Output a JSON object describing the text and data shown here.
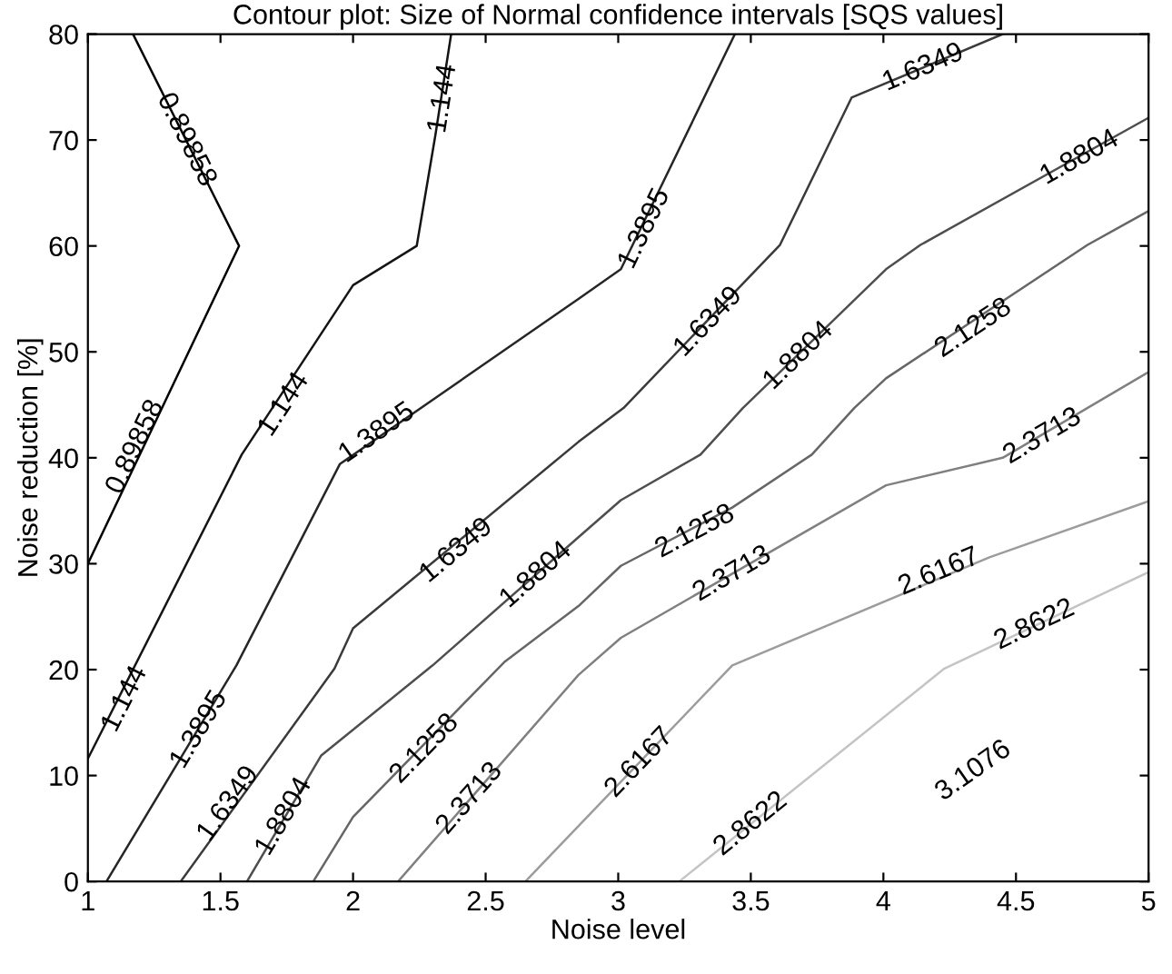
{
  "chart_data": {
    "type": "line",
    "title": "Contour plot: Size of Normal confidence intervals [SQS values]",
    "xlabel": "Noise level",
    "ylabel": "Noise reduction [%]",
    "xlim": [
      1,
      5
    ],
    "xticks": [
      1,
      1.5,
      2,
      2.5,
      3,
      3.5,
      4,
      4.5,
      5
    ],
    "ylim": [
      0,
      80
    ],
    "yticks": [
      0,
      10,
      20,
      30,
      40,
      50,
      60,
      70,
      80
    ],
    "grid": false,
    "marker": "none",
    "line_style": "solid",
    "series": [
      {
        "color": "#000000",
        "x": [
          1,
          1.57,
          1.17
        ],
        "values": [
          30,
          60,
          80
        ]
      },
      {
        "color": "#141414",
        "x": [
          1,
          1.58,
          2.0,
          2.24,
          2.31,
          2.37
        ],
        "values": [
          11.6,
          40.3,
          56.3,
          60,
          70.4,
          80
        ]
      },
      {
        "color": "#262626",
        "x": [
          1.07,
          1.56,
          1.95,
          2.85,
          3.01,
          3.44
        ],
        "values": [
          0,
          20.4,
          39.4,
          55,
          57.8,
          80
        ]
      },
      {
        "color": "#3a3a3a",
        "x": [
          1.35,
          1.93,
          2.0,
          2.85,
          3.02,
          3.61,
          3.88,
          4.45
        ],
        "values": [
          0,
          20.1,
          23.9,
          41.5,
          44.7,
          60.1,
          74,
          80
        ]
      },
      {
        "color": "#4e4e4e",
        "x": [
          1.6,
          1.88,
          2.3,
          2.85,
          3.01,
          3.31,
          3.47,
          4.01,
          4.14,
          5
        ],
        "values": [
          0,
          11.9,
          20.4,
          32.5,
          36,
          40.3,
          44.7,
          57.8,
          60.1,
          72.1
        ]
      },
      {
        "color": "#666666",
        "x": [
          1.85,
          2.0,
          2.57,
          2.85,
          3.01,
          3.43,
          3.73,
          3.89,
          4.01,
          4.77,
          5
        ],
        "values": [
          0,
          6.1,
          20.7,
          26,
          29.8,
          35.3,
          40.3,
          44.7,
          47.5,
          60.1,
          63.3
        ]
      },
      {
        "color": "#808080",
        "x": [
          2.17,
          2.85,
          3.01,
          4.01,
          4.45,
          5
        ],
        "values": [
          0,
          19.5,
          23,
          37.4,
          40,
          48.1
        ]
      },
      {
        "color": "#9c9c9c",
        "x": [
          2.65,
          3.43,
          4.4,
          5
        ],
        "values": [
          0,
          20.4,
          30.6,
          35.9
        ]
      },
      {
        "color": "#c4c4c4",
        "x": [
          3.23,
          4.23,
          5
        ],
        "values": [
          0,
          20.1,
          29.2
        ]
      }
    ],
    "annotations": [
      {
        "text": "0.89858",
        "x": 1.37,
        "y": 70
      },
      {
        "text": "0.89858",
        "x": 1.18,
        "y": 41
      },
      {
        "text": "1.144",
        "x": 2.34,
        "y": 73.9
      },
      {
        "text": "1.144",
        "x": 1.74,
        "y": 45
      },
      {
        "text": "1.144",
        "x": 1.14,
        "y": 17.2
      },
      {
        "text": "1.3895",
        "x": 3.1,
        "y": 61.6
      },
      {
        "text": "1.3895",
        "x": 2.09,
        "y": 42.3
      },
      {
        "text": "1.3895",
        "x": 1.42,
        "y": 14.3
      },
      {
        "text": "1.6349",
        "x": 4.15,
        "y": 76.8
      },
      {
        "text": "1.6349",
        "x": 3.34,
        "y": 52.8
      },
      {
        "text": "1.6349",
        "x": 2.39,
        "y": 31.2
      },
      {
        "text": "1.6349",
        "x": 1.53,
        "y": 7.3
      },
      {
        "text": "1.8804",
        "x": 4.74,
        "y": 68.3
      },
      {
        "text": "1.8804",
        "x": 3.68,
        "y": 49.6
      },
      {
        "text": "1.8804",
        "x": 2.69,
        "y": 28.9
      },
      {
        "text": "1.8804",
        "x": 1.74,
        "y": 6.1
      },
      {
        "text": "2.1258",
        "x": 4.34,
        "y": 52.2
      },
      {
        "text": "2.1258",
        "x": 3.29,
        "y": 33
      },
      {
        "text": "2.1258",
        "x": 2.27,
        "y": 12.5
      },
      {
        "text": "2.3713",
        "x": 4.6,
        "y": 42
      },
      {
        "text": "2.3713",
        "x": 3.43,
        "y": 29
      },
      {
        "text": "2.3713",
        "x": 2.44,
        "y": 7.8
      },
      {
        "text": "2.6167",
        "x": 4.21,
        "y": 29.2
      },
      {
        "text": "2.6167",
        "x": 3.08,
        "y": 11.2
      },
      {
        "text": "2.8622",
        "x": 4.57,
        "y": 24.2
      },
      {
        "text": "2.8622",
        "x": 3.5,
        "y": 5.4
      },
      "3.1076"
    ]
  }
}
